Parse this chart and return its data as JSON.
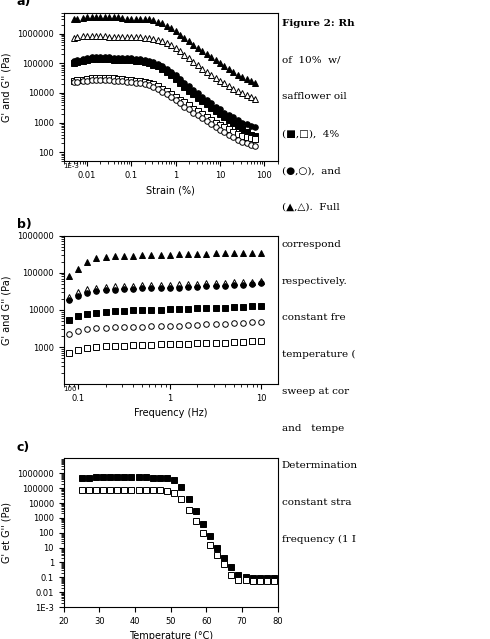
{
  "panel_a": {
    "xlabel": "Strain (%)",
    "ylabel": "G' and G'' (Pa)",
    "xlim": [
      0.003,
      200
    ],
    "ylim": [
      50,
      5000000
    ],
    "yticks": [
      100,
      1000,
      10000,
      100000,
      1000000
    ],
    "ytick_labels": [
      "100",
      "1000",
      "10000",
      "100000",
      "1000000"
    ],
    "series": [
      {
        "name": "filled_triangle",
        "marker": "^",
        "filled": true,
        "x": [
          0.005,
          0.006,
          0.008,
          0.01,
          0.013,
          0.016,
          0.02,
          0.025,
          0.032,
          0.04,
          0.05,
          0.063,
          0.08,
          0.1,
          0.126,
          0.158,
          0.2,
          0.251,
          0.316,
          0.398,
          0.501,
          0.631,
          0.794,
          1.0,
          1.259,
          1.585,
          1.995,
          2.512,
          3.162,
          3.981,
          5.012,
          6.31,
          7.943,
          10.0,
          12.59,
          15.85,
          19.95,
          25.12,
          31.62,
          39.81,
          50.12,
          63.1
        ],
        "y": [
          3000000,
          3200000,
          3400000,
          3500000,
          3500000,
          3500000,
          3500000,
          3500000,
          3500000,
          3500000,
          3500000,
          3400000,
          3200000,
          3200000,
          3200000,
          3200000,
          3200000,
          3000000,
          2800000,
          2500000,
          2200000,
          1800000,
          1500000,
          1200000,
          900000,
          700000,
          550000,
          420000,
          330000,
          260000,
          200000,
          160000,
          130000,
          100000,
          80000,
          65000,
          50000,
          40000,
          35000,
          30000,
          25000,
          22000
        ]
      },
      {
        "name": "open_triangle",
        "marker": "^",
        "filled": false,
        "x": [
          0.005,
          0.006,
          0.008,
          0.01,
          0.013,
          0.016,
          0.02,
          0.025,
          0.032,
          0.04,
          0.05,
          0.063,
          0.08,
          0.1,
          0.126,
          0.158,
          0.2,
          0.251,
          0.316,
          0.398,
          0.501,
          0.631,
          0.794,
          1.0,
          1.259,
          1.585,
          1.995,
          2.512,
          3.162,
          3.981,
          5.012,
          6.31,
          7.943,
          10.0,
          12.59,
          15.85,
          19.95,
          25.12,
          31.62,
          39.81,
          50.12,
          63.1
        ],
        "y": [
          700000,
          750000,
          800000,
          800000,
          800000,
          800000,
          800000,
          800000,
          780000,
          760000,
          760000,
          750000,
          750000,
          750000,
          750000,
          750000,
          720000,
          700000,
          670000,
          620000,
          560000,
          480000,
          400000,
          320000,
          250000,
          190000,
          145000,
          110000,
          85000,
          65000,
          50000,
          40000,
          32000,
          26000,
          21000,
          17000,
          14000,
          12000,
          10000,
          8500,
          7500,
          6500
        ]
      },
      {
        "name": "filled_square",
        "marker": "s",
        "filled": true,
        "x": [
          0.005,
          0.006,
          0.008,
          0.01,
          0.013,
          0.016,
          0.02,
          0.025,
          0.032,
          0.04,
          0.05,
          0.063,
          0.08,
          0.1,
          0.126,
          0.158,
          0.2,
          0.251,
          0.316,
          0.398,
          0.501,
          0.631,
          0.794,
          1.0,
          1.259,
          1.585,
          1.995,
          2.512,
          3.162,
          3.981,
          5.012,
          6.31,
          7.943,
          10.0,
          12.59,
          15.85,
          19.95,
          25.12,
          31.62,
          39.81,
          50.12,
          63.1
        ],
        "y": [
          100000,
          110000,
          120000,
          130000,
          140000,
          140000,
          140000,
          140000,
          135000,
          130000,
          130000,
          130000,
          125000,
          125000,
          120000,
          115000,
          110000,
          100000,
          90000,
          78000,
          65000,
          52000,
          40000,
          30000,
          22000,
          16000,
          12000,
          9000,
          7000,
          5500,
          4200,
          3200,
          2500,
          2000,
          1500,
          1200,
          950,
          750,
          600,
          500,
          400,
          350
        ]
      },
      {
        "name": "filled_circle",
        "marker": "o",
        "filled": true,
        "x": [
          0.005,
          0.006,
          0.008,
          0.01,
          0.013,
          0.016,
          0.02,
          0.025,
          0.032,
          0.04,
          0.05,
          0.063,
          0.08,
          0.1,
          0.126,
          0.158,
          0.2,
          0.251,
          0.316,
          0.398,
          0.501,
          0.631,
          0.794,
          1.0,
          1.259,
          1.585,
          1.995,
          2.512,
          3.162,
          3.981,
          5.012,
          6.31,
          7.943,
          10.0,
          12.59,
          15.85,
          19.95,
          25.12,
          31.62,
          39.81,
          50.12,
          63.1
        ],
        "y": [
          120000,
          130000,
          140000,
          150000,
          160000,
          165000,
          165000,
          165000,
          160000,
          155000,
          150000,
          145000,
          145000,
          145000,
          140000,
          135000,
          130000,
          120000,
          110000,
          95000,
          80000,
          65000,
          52000,
          40000,
          30000,
          22000,
          17000,
          13000,
          10000,
          7500,
          5800,
          4500,
          3500,
          2800,
          2200,
          1800,
          1500,
          1200,
          1000,
          900,
          800,
          700
        ]
      },
      {
        "name": "open_square",
        "marker": "s",
        "filled": false,
        "x": [
          0.005,
          0.006,
          0.008,
          0.01,
          0.013,
          0.016,
          0.02,
          0.025,
          0.032,
          0.04,
          0.05,
          0.063,
          0.08,
          0.1,
          0.126,
          0.158,
          0.2,
          0.251,
          0.316,
          0.398,
          0.501,
          0.631,
          0.794,
          1.0,
          1.259,
          1.585,
          1.995,
          2.512,
          3.162,
          3.981,
          5.012,
          6.31,
          7.943,
          10.0,
          12.59,
          15.85,
          19.95,
          25.12,
          31.62,
          39.81,
          50.12,
          63.1
        ],
        "y": [
          25000,
          27000,
          28000,
          30000,
          32000,
          33000,
          33000,
          33000,
          32000,
          31000,
          30000,
          29000,
          28000,
          27000,
          26000,
          25000,
          24000,
          22000,
          20000,
          17000,
          14000,
          12000,
          9500,
          7500,
          6000,
          4800,
          3800,
          3000,
          2400,
          1900,
          1500,
          1200,
          1000,
          850,
          700,
          600,
          500,
          420,
          370,
          330,
          300,
          280
        ]
      },
      {
        "name": "open_circle",
        "marker": "o",
        "filled": false,
        "x": [
          0.005,
          0.006,
          0.008,
          0.01,
          0.013,
          0.016,
          0.02,
          0.025,
          0.032,
          0.04,
          0.05,
          0.063,
          0.08,
          0.1,
          0.126,
          0.158,
          0.2,
          0.251,
          0.316,
          0.398,
          0.501,
          0.631,
          0.794,
          1.0,
          1.259,
          1.585,
          1.995,
          2.512,
          3.162,
          3.981,
          5.012,
          6.31,
          7.943,
          10.0,
          12.59,
          15.85,
          19.95,
          25.12,
          31.62,
          39.81,
          50.12,
          63.1
        ],
        "y": [
          23000,
          24000,
          25000,
          26000,
          27000,
          28000,
          28000,
          28000,
          27000,
          26000,
          26000,
          25000,
          24000,
          23000,
          22000,
          21000,
          20000,
          18000,
          16000,
          14000,
          11000,
          9000,
          7200,
          5600,
          4500,
          3500,
          2800,
          2200,
          1800,
          1400,
          1100,
          880,
          720,
          580,
          470,
          385,
          320,
          270,
          230,
          200,
          180,
          165
        ]
      }
    ]
  },
  "panel_b": {
    "xlabel": "Frequency (Hz)",
    "ylabel": "G' and G'' (Pa)",
    "xlim": [
      0.07,
      15
    ],
    "ylim": [
      100,
      1000000
    ],
    "series": [
      {
        "name": "filled_triangle",
        "marker": "^",
        "filled": true,
        "x": [
          0.08,
          0.1,
          0.126,
          0.158,
          0.2,
          0.251,
          0.316,
          0.398,
          0.501,
          0.631,
          0.794,
          1.0,
          1.259,
          1.585,
          1.995,
          2.512,
          3.162,
          3.981,
          5.012,
          6.31,
          7.943,
          10.0
        ],
        "y": [
          80000,
          130000,
          200000,
          250000,
          270000,
          280000,
          285000,
          290000,
          295000,
          300000,
          305000,
          310000,
          315000,
          320000,
          325000,
          330000,
          335000,
          335000,
          340000,
          340000,
          345000,
          350000
        ]
      },
      {
        "name": "open_triangle",
        "marker": "^",
        "filled": false,
        "x": [
          0.08,
          0.1,
          0.126,
          0.158,
          0.2,
          0.251,
          0.316,
          0.398,
          0.501,
          0.631,
          0.794,
          1.0,
          1.259,
          1.585,
          1.995,
          2.512,
          3.162,
          3.981,
          5.012,
          6.31,
          7.943,
          10.0
        ],
        "y": [
          22000,
          30000,
          36000,
          40000,
          42000,
          43000,
          44000,
          45000,
          46000,
          47000,
          48000,
          48000,
          49000,
          50000,
          51000,
          52000,
          53000,
          54000,
          55000,
          56000,
          58000,
          60000
        ]
      },
      {
        "name": "filled_circle",
        "marker": "o",
        "filled": true,
        "x": [
          0.08,
          0.1,
          0.126,
          0.158,
          0.2,
          0.251,
          0.316,
          0.398,
          0.501,
          0.631,
          0.794,
          1.0,
          1.259,
          1.585,
          1.995,
          2.512,
          3.162,
          3.981,
          5.012,
          6.31,
          7.943,
          10.0
        ],
        "y": [
          18000,
          24000,
          29000,
          32000,
          34000,
          35000,
          36000,
          37000,
          38000,
          38000,
          39000,
          39000,
          40000,
          41000,
          42000,
          43000,
          44000,
          45000,
          46000,
          48000,
          50000,
          52000
        ]
      },
      {
        "name": "filled_square",
        "marker": "s",
        "filled": true,
        "x": [
          0.08,
          0.1,
          0.126,
          0.158,
          0.2,
          0.251,
          0.316,
          0.398,
          0.501,
          0.631,
          0.794,
          1.0,
          1.259,
          1.585,
          1.995,
          2.512,
          3.162,
          3.981,
          5.012,
          6.31,
          7.943,
          10.0
        ],
        "y": [
          5500,
          7000,
          8000,
          8500,
          9000,
          9200,
          9500,
          9700,
          9900,
          10000,
          10200,
          10400,
          10600,
          10800,
          11000,
          11200,
          11400,
          11600,
          11800,
          12000,
          12400,
          12800
        ]
      },
      {
        "name": "open_circle",
        "marker": "o",
        "filled": false,
        "x": [
          0.08,
          0.1,
          0.126,
          0.158,
          0.2,
          0.251,
          0.316,
          0.398,
          0.501,
          0.631,
          0.794,
          1.0,
          1.259,
          1.585,
          1.995,
          2.512,
          3.162,
          3.981,
          5.012,
          6.31,
          7.943,
          10.0
        ],
        "y": [
          2200,
          2700,
          3000,
          3200,
          3300,
          3400,
          3450,
          3500,
          3550,
          3600,
          3650,
          3700,
          3800,
          3900,
          4000,
          4100,
          4200,
          4300,
          4400,
          4500,
          4600,
          4800
        ]
      },
      {
        "name": "open_square",
        "marker": "s",
        "filled": false,
        "x": [
          0.08,
          0.1,
          0.126,
          0.158,
          0.2,
          0.251,
          0.316,
          0.398,
          0.501,
          0.631,
          0.794,
          1.0,
          1.259,
          1.585,
          1.995,
          2.512,
          3.162,
          3.981,
          5.012,
          6.31,
          7.943,
          10.0
        ],
        "y": [
          700,
          850,
          950,
          1000,
          1050,
          1080,
          1100,
          1120,
          1140,
          1160,
          1180,
          1200,
          1220,
          1240,
          1260,
          1280,
          1300,
          1320,
          1340,
          1380,
          1420,
          1460
        ]
      }
    ]
  },
  "panel_c": {
    "xlabel": "Temperature (°C)",
    "ylabel": "G' et G'' (Pa)",
    "xlim": [
      20,
      80
    ],
    "ylim": [
      0.001,
      10000000
    ],
    "series": [
      {
        "name": "filled_square",
        "marker": "s",
        "filled": true,
        "x": [
          25,
          27,
          29,
          31,
          33,
          35,
          37,
          39,
          41,
          43,
          45,
          47,
          49,
          51,
          53,
          55,
          57,
          59,
          61,
          63,
          65,
          67,
          69,
          71,
          73,
          75,
          77,
          79
        ],
        "y": [
          500000,
          520000,
          530000,
          540000,
          545000,
          550000,
          550000,
          545000,
          540000,
          530000,
          520000,
          500000,
          480000,
          350000,
          120000,
          20000,
          3000,
          400,
          60,
          10,
          2,
          0.5,
          0.15,
          0.1,
          0.09,
          0.09,
          0.09,
          0.09
        ]
      },
      {
        "name": "open_square",
        "marker": "s",
        "filled": false,
        "x": [
          25,
          27,
          29,
          31,
          33,
          35,
          37,
          39,
          41,
          43,
          45,
          47,
          49,
          51,
          53,
          55,
          57,
          59,
          61,
          63,
          65,
          67,
          69,
          71,
          73,
          75,
          77,
          79
        ],
        "y": [
          70000,
          75000,
          77000,
          78000,
          79000,
          80000,
          80000,
          79000,
          78000,
          76000,
          74000,
          70000,
          65000,
          48000,
          18000,
          3500,
          600,
          100,
          15,
          3,
          0.8,
          0.15,
          0.07,
          0.065,
          0.06,
          0.06,
          0.06,
          0.06
        ]
      }
    ]
  },
  "text_lines": [
    {
      "text": "Figure 2: Rh",
      "bold": true
    },
    {
      "text": "of  10%  w/",
      "bold": false
    },
    {
      "text": "safflower oil",
      "bold": false
    },
    {
      "text": "(■,□),  4%",
      "bold": false
    },
    {
      "text": "(●,○),  and",
      "bold": false
    },
    {
      "text": "(▲,△).  Full",
      "bold": false
    },
    {
      "text": "correspond",
      "bold": false
    },
    {
      "text": "respectively.",
      "bold": false
    },
    {
      "text": "constant fre",
      "bold": false
    },
    {
      "text": "temperature (",
      "bold": false
    },
    {
      "text": "sweep at cor",
      "bold": false
    },
    {
      "text": "and   tempe",
      "bold": false
    },
    {
      "text": "Determination",
      "bold": false
    },
    {
      "text": "constant stra",
      "bold": false
    },
    {
      "text": "frequency (1 I",
      "bold": false
    }
  ]
}
